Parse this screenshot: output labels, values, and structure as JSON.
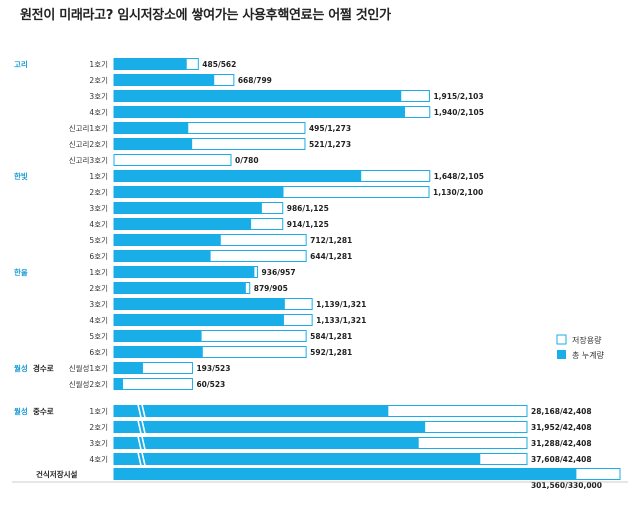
{
  "title": "원전이 미래라고? 임시저장소에 쌓여가는 사용후핵연료는 어쩔 것인가",
  "legend": {
    "capacity_label": "저장용량",
    "total_label": "총 누계량",
    "capacity_color": "#ffffff",
    "total_color": "#1aaee8",
    "border_color": "#1aaee8"
  },
  "chart_data": {
    "type": "bar",
    "orientation": "horizontal",
    "series": [
      {
        "name": "저장용량",
        "role": "capacity"
      },
      {
        "name": "총 누계량",
        "role": "total"
      }
    ],
    "groups": [
      {
        "name": "고리",
        "rows": [
          {
            "label": "1호기",
            "total": 485,
            "capacity": 562,
            "text": "485/562"
          },
          {
            "label": "2호기",
            "total": 668,
            "capacity": 799,
            "text": "668/799"
          },
          {
            "label": "3호기",
            "total": 1915,
            "capacity": 2103,
            "text": "1,915/2,103"
          },
          {
            "label": "4호기",
            "total": 1940,
            "capacity": 2105,
            "text": "1,940/2,105"
          },
          {
            "label": "신고리1호기",
            "total": 495,
            "capacity": 1273,
            "text": "495/1,273"
          },
          {
            "label": "신고리2호기",
            "total": 521,
            "capacity": 1273,
            "text": "521/1,273"
          },
          {
            "label": "신고리3호기",
            "total": 0,
            "capacity": 780,
            "text": "0/780"
          }
        ]
      },
      {
        "name": "한빛",
        "rows": [
          {
            "label": "1호기",
            "total": 1648,
            "capacity": 2105,
            "text": "1,648/2,105"
          },
          {
            "label": "2호기",
            "total": 1130,
            "capacity": 2100,
            "text": "1,130/2,100"
          },
          {
            "label": "3호기",
            "total": 986,
            "capacity": 1125,
            "text": "986/1,125"
          },
          {
            "label": "4호기",
            "total": 914,
            "capacity": 1125,
            "text": "914/1,125"
          },
          {
            "label": "5호기",
            "total": 712,
            "capacity": 1281,
            "text": "712/1,281"
          },
          {
            "label": "6호기",
            "total": 644,
            "capacity": 1281,
            "text": "644/1,281"
          }
        ]
      },
      {
        "name": "한울",
        "rows": [
          {
            "label": "1호기",
            "total": 936,
            "capacity": 957,
            "text": "936/957"
          },
          {
            "label": "2호기",
            "total": 879,
            "capacity": 905,
            "text": "879/905"
          },
          {
            "label": "3호기",
            "total": 1139,
            "capacity": 1321,
            "text": "1,139/1,321"
          },
          {
            "label": "4호기",
            "total": 1133,
            "capacity": 1321,
            "text": "1,133/1,321"
          },
          {
            "label": "5호기",
            "total": 584,
            "capacity": 1281,
            "text": "584/1,281"
          },
          {
            "label": "6호기",
            "total": 592,
            "capacity": 1281,
            "text": "592/1,281"
          }
        ]
      },
      {
        "name": "월성",
        "subname": "경수로",
        "rows": [
          {
            "label": "신월성1호기",
            "total": 193,
            "capacity": 523,
            "text": "193/523"
          },
          {
            "label": "신월성2호기",
            "total": 60,
            "capacity": 523,
            "text": "60/523"
          }
        ]
      },
      {
        "name": "월성",
        "subname": "중수로",
        "broken_axis": true,
        "rows": [
          {
            "label": "1호기",
            "total": 28168,
            "capacity": 42408,
            "text": "28,168/42,408"
          },
          {
            "label": "2호기",
            "total": 31952,
            "capacity": 42408,
            "text": "31,952/42,408"
          },
          {
            "label": "3호기",
            "total": 31288,
            "capacity": 42408,
            "text": "31,288/42,408"
          },
          {
            "label": "4호기",
            "total": 37608,
            "capacity": 42408,
            "text": "37,608/42,408"
          }
        ]
      },
      {
        "name": "건식저장시설",
        "broken_axis": true,
        "rows": [
          {
            "label": "",
            "total": 301560,
            "capacity": 330000,
            "text": "301,560/330,000"
          }
        ]
      }
    ]
  }
}
